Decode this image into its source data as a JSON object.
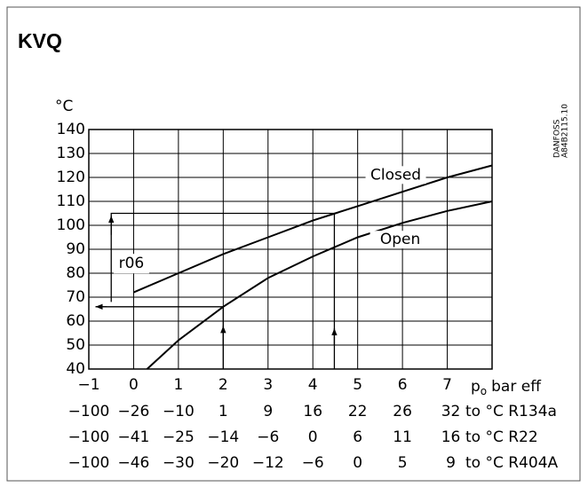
{
  "chart_data": {
    "type": "line",
    "title": "KVQ",
    "ylabel": "°C",
    "xlabel": [
      "p",
      "o",
      "bar eff"
    ],
    "source": [
      "DANFOSS",
      "A84B2115.10"
    ],
    "xlim": [
      -1,
      8
    ],
    "ylim": [
      40,
      140
    ],
    "xticks": [
      {
        "value": -1,
        "label": "−1"
      },
      0,
      1,
      2,
      3,
      4,
      5,
      6,
      7
    ],
    "gridx": [
      -1,
      0,
      1,
      2,
      3,
      4,
      5,
      6,
      7,
      8
    ],
    "yticks": [
      40,
      50,
      60,
      70,
      80,
      90,
      100,
      110,
      120,
      130,
      140
    ],
    "grid": true,
    "series": [
      {
        "name": "Closed",
        "color": "#000000",
        "label_at": [
          5.85,
          121
        ],
        "x": [
          0,
          1,
          2,
          3,
          4,
          4.5,
          5,
          6,
          7,
          8
        ],
        "values": [
          72,
          80,
          88,
          95,
          102,
          105,
          108,
          114,
          120,
          125
        ]
      },
      {
        "name": "Open",
        "color": "#000000",
        "label_at": [
          5.95,
          94
        ],
        "x": [
          0.3,
          1,
          2,
          3,
          4,
          4.5,
          5,
          6,
          7,
          8
        ],
        "values": [
          40,
          52,
          66,
          78,
          87,
          91,
          95,
          101,
          106,
          110
        ]
      }
    ],
    "guides": [
      {
        "x": [
          2,
          2,
          -0.85
        ],
        "y": [
          40,
          66,
          66
        ]
      },
      {
        "x": [
          4.48,
          4.48,
          -0.5,
          -0.5
        ],
        "y": [
          40,
          105,
          105,
          68
        ]
      }
    ],
    "arrows": [
      {
        "x": [
          2,
          2
        ],
        "y": [
          50,
          58
        ]
      },
      {
        "x": [
          4.48,
          4.48
        ],
        "y": [
          50,
          57
        ]
      },
      {
        "x": [
          -0.5,
          -0.5
        ],
        "y": [
          96,
          104
        ]
      },
      {
        "x": [
          -0.6,
          -0.85
        ],
        "y": [
          66,
          66
        ]
      }
    ],
    "annotation": {
      "text": "r06",
      "at": [
        -0.05,
        84
      ]
    },
    "temperature_rows": [
      {
        "labels": [
          "−100",
          "−26",
          "−10",
          "1",
          "9",
          "16",
          "22",
          "26",
          "32"
        ],
        "unit": "to °C R134a"
      },
      {
        "labels": [
          "−100",
          "−41",
          "−25",
          "−14",
          "−6",
          "0",
          "6",
          "11",
          "16"
        ],
        "unit": "to °C R22"
      },
      {
        "labels": [
          "−100",
          "−46",
          "−30",
          "−20",
          "−12",
          "−6",
          "0",
          "5",
          "9"
        ],
        "unit": "to °C R404A"
      }
    ]
  }
}
